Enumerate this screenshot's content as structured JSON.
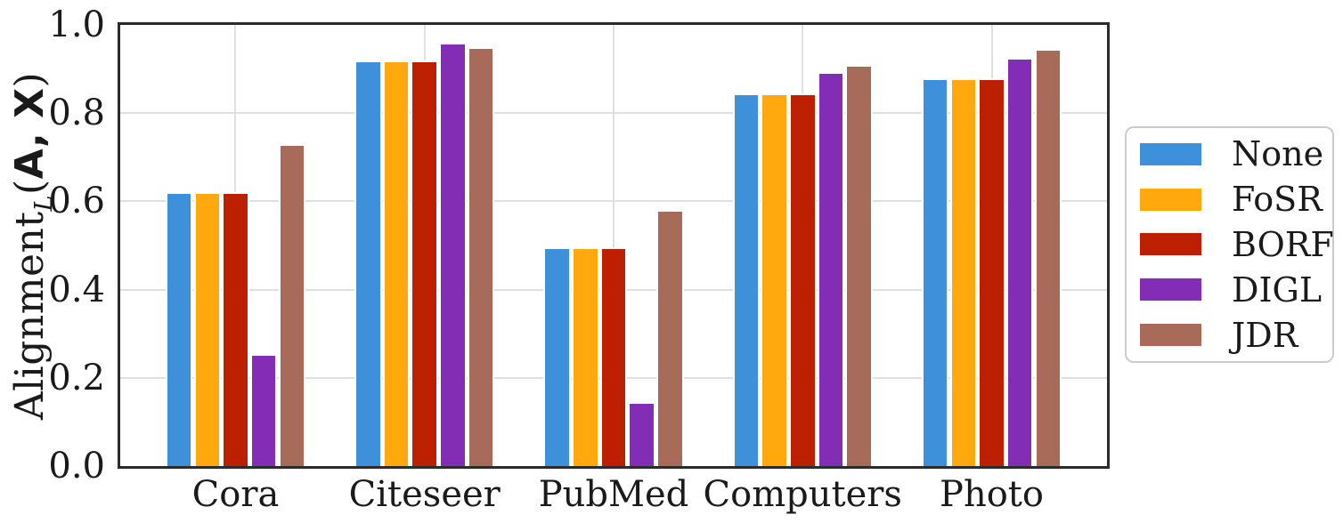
{
  "chart_data": {
    "type": "bar",
    "title": "",
    "xlabel": "",
    "ylabel": "Alignment_L(A, X)",
    "ylabel_parts": {
      "main": "Alignment",
      "subscript": "L",
      "open": "(",
      "arg1": "A",
      "separator": ", ",
      "arg2": "X",
      "close": ")"
    },
    "categories": [
      "Cora",
      "Citeseer",
      "PubMed",
      "Computers",
      "Photo"
    ],
    "series": [
      {
        "name": "None",
        "color": "#3f90da",
        "values": [
          0.62,
          0.92,
          0.495,
          0.845,
          0.88
        ]
      },
      {
        "name": "FoSR",
        "color": "#ffa90e",
        "values": [
          0.62,
          0.92,
          0.495,
          0.845,
          0.88
        ]
      },
      {
        "name": "BORF",
        "color": "#bd1f01",
        "values": [
          0.62,
          0.92,
          0.495,
          0.845,
          0.88
        ]
      },
      {
        "name": "DIGL",
        "color": "#832db6",
        "values": [
          0.255,
          0.96,
          0.145,
          0.893,
          0.925
        ]
      },
      {
        "name": "JDR",
        "color": "#a96b59",
        "values": [
          0.73,
          0.95,
          0.58,
          0.91,
          0.945
        ]
      }
    ],
    "ylim": [
      0.0,
      1.0
    ],
    "yticks": [
      0.0,
      0.2,
      0.4,
      0.6,
      0.8,
      1.0
    ],
    "grid": true,
    "legend_position": "right of plot, vertically centered",
    "colors": {
      "spine": "#2b2b2b",
      "gridline": "#e0e0e0",
      "text": "#1a1a1a",
      "legend_border": "#cccccc",
      "bar_edge": "#ffffff",
      "background": "#ffffff"
    }
  }
}
